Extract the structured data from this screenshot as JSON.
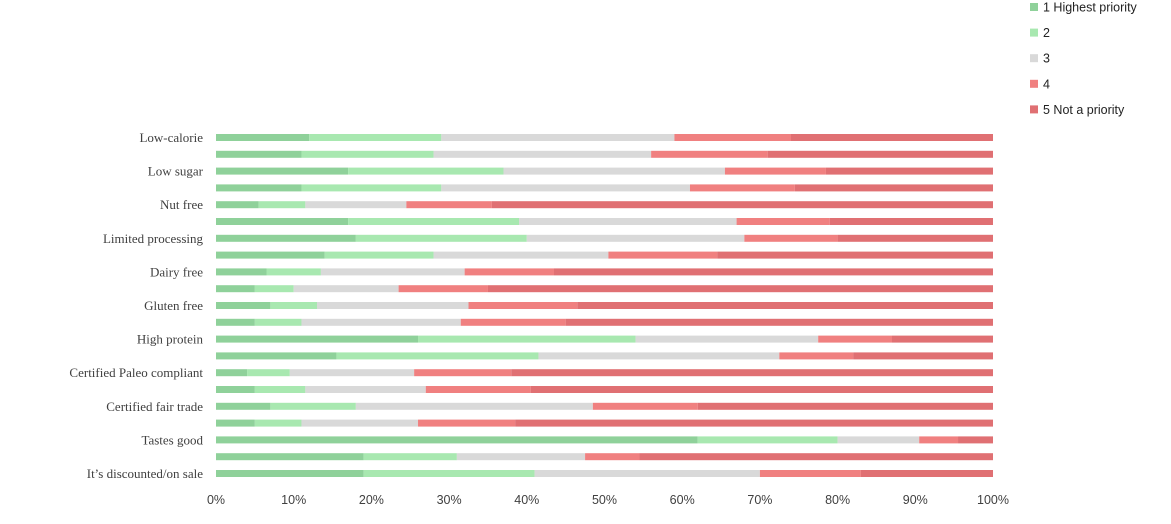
{
  "chart_data": {
    "type": "bar",
    "orientation": "horizontal",
    "stacked": "percent",
    "categories": [
      "Low-calorie",
      "",
      "Low sugar",
      "",
      "Nut free",
      "",
      "Limited processing",
      "",
      "Dairy free",
      "",
      "Gluten free",
      "",
      "High protein",
      "",
      "Certified Paleo compliant",
      "",
      "Certified fair trade",
      "",
      "Tastes good",
      "",
      "It’s discounted/on sale"
    ],
    "series": [
      {
        "name": "1 Highest priority",
        "color": "#8fd19a",
        "values": [
          12,
          11,
          17,
          11,
          5.5,
          17,
          18,
          14,
          6.5,
          5,
          7,
          5,
          26,
          15.5,
          4,
          5,
          7,
          5,
          62,
          19,
          19
        ]
      },
      {
        "name": "2",
        "color": "#a8e8b0",
        "values": [
          17,
          17,
          20,
          18,
          6,
          22,
          22,
          14,
          7,
          5,
          6,
          6,
          28,
          26,
          5.5,
          6.5,
          11,
          6,
          18,
          12,
          22
        ]
      },
      {
        "name": "3",
        "color": "#d9d9d9",
        "values": [
          30,
          28,
          28.5,
          32,
          13,
          28,
          28,
          22.5,
          18.5,
          13.5,
          19.5,
          20.5,
          23.5,
          31,
          16,
          15.5,
          30.5,
          15,
          10.5,
          16.5,
          29
        ]
      },
      {
        "name": "4",
        "color": "#f08080",
        "values": [
          15,
          15,
          13,
          13.5,
          11,
          12,
          12,
          14,
          11.5,
          11.5,
          14,
          13.5,
          9.5,
          9.5,
          12.5,
          13.5,
          13.5,
          12.5,
          5,
          7,
          13
        ]
      },
      {
        "name": "5 Not a priority",
        "color": "#e07073",
        "values": [
          26,
          29,
          21.5,
          25.5,
          64.5,
          21,
          20,
          35.5,
          56.5,
          65,
          53.5,
          55,
          13,
          18,
          62,
          59.5,
          38,
          61.5,
          4.5,
          45.5,
          17
        ]
      }
    ],
    "xlim": [
      0,
      100
    ],
    "x_ticks": [
      "0%",
      "10%",
      "20%",
      "30%",
      "40%",
      "50%",
      "60%",
      "70%",
      "80%",
      "90%",
      "100%"
    ],
    "legend_position": "top-right",
    "grid": false
  }
}
